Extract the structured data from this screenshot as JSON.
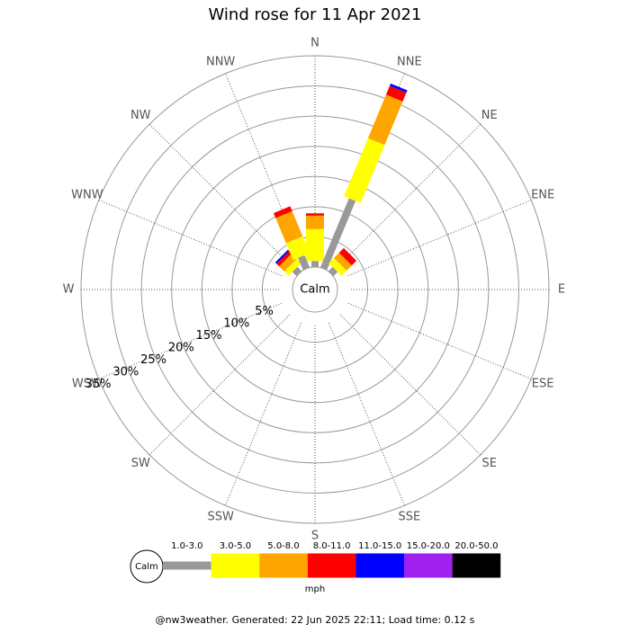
{
  "chart_data": {
    "type": "windrose",
    "title": "Wind rose for 11 Apr 2021",
    "directions": [
      "N",
      "NNE",
      "NE",
      "ENE",
      "E",
      "ESE",
      "SE",
      "SSE",
      "S",
      "SSW",
      "SW",
      "WSW",
      "W",
      "WNW",
      "NW",
      "NNW"
    ],
    "calm_label": "Calm",
    "rlim": [
      0,
      35
    ],
    "rticks": [
      {
        "value": 5,
        "label": "5%"
      },
      {
        "value": 10,
        "label": "10%"
      },
      {
        "value": 15,
        "label": "15%"
      },
      {
        "value": 20,
        "label": "20%"
      },
      {
        "value": 25,
        "label": "25%"
      },
      {
        "value": 30,
        "label": "30%"
      },
      {
        "value": 35,
        "label": "35%"
      }
    ],
    "series": [
      {
        "name": "1.0-3.0",
        "color": "#999999",
        "values": [
          1.0,
          12.4,
          1.0,
          0,
          0,
          0,
          0,
          0,
          0,
          0,
          0,
          0,
          0,
          0,
          1.0,
          2.2
        ]
      },
      {
        "name": "3.0-5.0",
        "color": "#ffff00",
        "values": [
          5.3,
          10.4,
          1.2,
          0,
          0,
          0,
          0,
          0,
          0,
          0,
          0,
          0,
          0,
          0,
          1.0,
          3.0
        ]
      },
      {
        "name": "5.0-8.0",
        "color": "#ffa500",
        "values": [
          2.2,
          7.8,
          1.2,
          0,
          0,
          0,
          0,
          0,
          0,
          0,
          0,
          0,
          0,
          0,
          1.2,
          4.5
        ]
      },
      {
        "name": "8.0-11.0",
        "color": "#ff0000",
        "values": [
          0.4,
          1.6,
          1.1,
          0,
          0,
          0,
          0,
          0,
          0,
          0,
          0,
          0,
          0,
          0,
          0.6,
          0.9
        ]
      },
      {
        "name": "11.0-15.0",
        "color": "#0000ff",
        "values": [
          0,
          0.4,
          0,
          0,
          0,
          0,
          0,
          0,
          0,
          0,
          0,
          0,
          0,
          0,
          0.3,
          0
        ]
      },
      {
        "name": "15.0-20.0",
        "color": "#a020f0",
        "values": [
          0,
          0,
          0,
          0,
          0,
          0,
          0,
          0,
          0,
          0,
          0,
          0,
          0,
          0,
          0,
          0
        ]
      },
      {
        "name": "20.0-50.0",
        "color": "#000000",
        "values": [
          0,
          0,
          0,
          0,
          0,
          0,
          0,
          0,
          0,
          0,
          0,
          0,
          0,
          0,
          0,
          0
        ]
      }
    ],
    "unit": "mph",
    "footer": "@nw3weather. Generated: 22 Jun 2025 22:11; Load time: 0.12 s"
  }
}
